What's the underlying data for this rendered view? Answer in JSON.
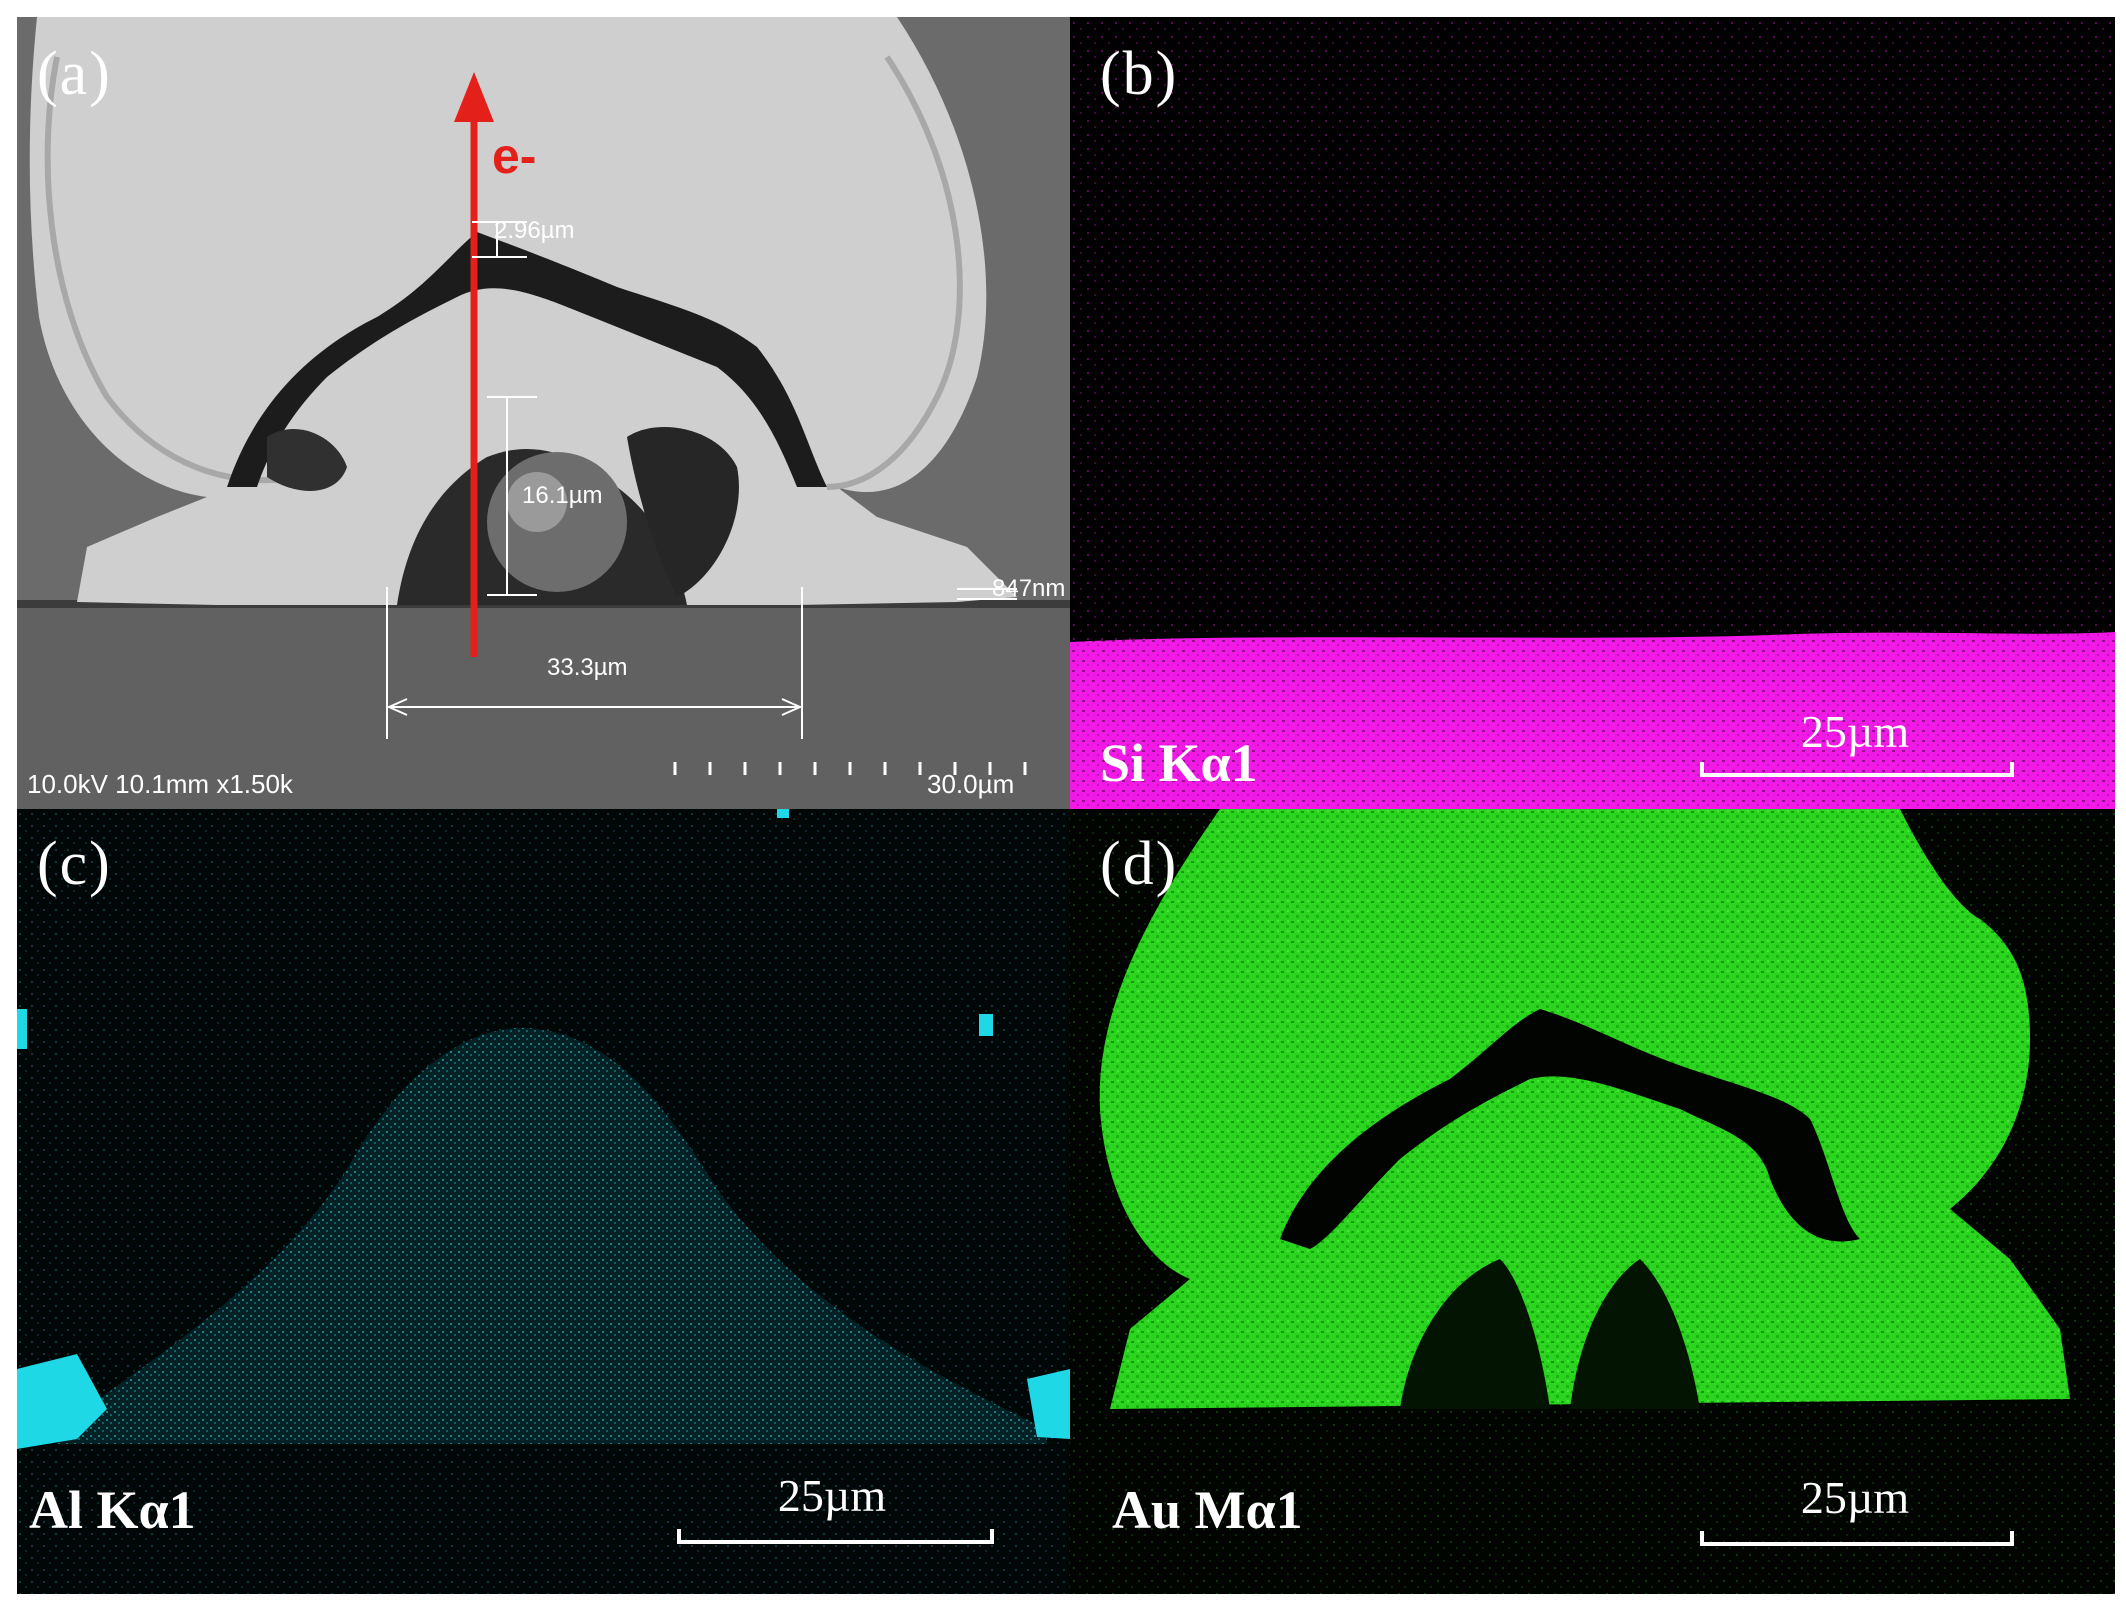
{
  "panels": {
    "a": {
      "label": "(a)",
      "electron_label": "e-",
      "measurements": {
        "top_gap": "2.96µm",
        "ball_height": "16.1µm",
        "right_gap": "847nm",
        "bond_width": "33.3µm"
      },
      "sem_info": "10.0kV 10.1mm x1.50k",
      "scale": "30.0µm",
      "arrow_color": "#e4201b"
    },
    "b": {
      "label": "(b)",
      "element": "Si Kα1",
      "scale": "25µm",
      "map_color": "#ff19f5"
    },
    "c": {
      "label": "(c)",
      "element": "Al Kα1",
      "scale": "25µm",
      "map_color": "#1fd8e6"
    },
    "d": {
      "label": "(d)",
      "element": "Au Mα1",
      "scale": "25µm",
      "map_color": "#28d21c"
    }
  }
}
